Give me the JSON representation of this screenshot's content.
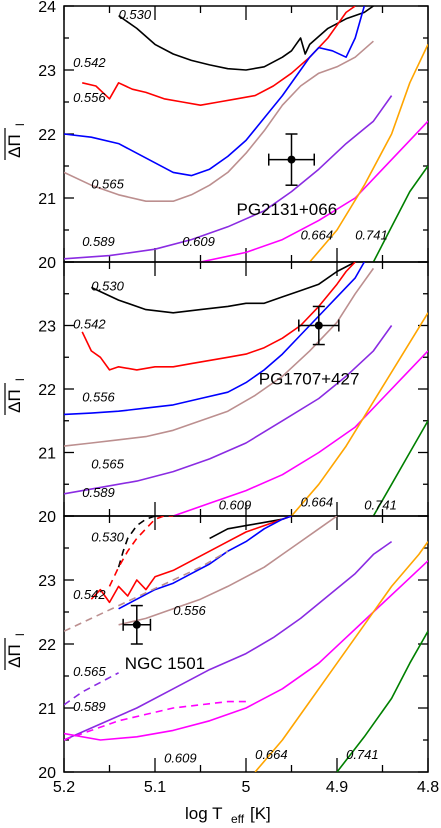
{
  "chart_data": [
    {
      "type": "line",
      "panel": "top",
      "ylabel": "ΔΠ̄_l",
      "xlim": [
        5.2,
        4.8
      ],
      "ylim": [
        20,
        24
      ],
      "y_ticks": [
        "20",
        "21",
        "22",
        "23",
        "24"
      ],
      "star": {
        "name": "PG2131+066",
        "x": 4.95,
        "y": 21.6,
        "xerr": 0.025,
        "yerr": 0.4
      },
      "series": [
        {
          "name": "0.530",
          "color": "#000000",
          "dashed": false,
          "x": [
            5.14,
            5.12,
            5.1,
            5.08,
            5.06,
            5.04,
            5.02,
            5.0,
            4.98,
            4.96,
            4.95,
            4.945,
            4.94,
            4.935,
            4.93,
            4.91,
            4.89,
            4.87,
            4.86
          ],
          "y": [
            23.85,
            23.65,
            23.4,
            23.25,
            23.15,
            23.08,
            23.02,
            23.0,
            23.05,
            23.2,
            23.3,
            23.4,
            23.5,
            23.25,
            23.4,
            23.65,
            23.8,
            23.9,
            24.0
          ]
        },
        {
          "name": "0.542",
          "color": "#ff0000",
          "dashed": false,
          "x": [
            5.18,
            5.165,
            5.15,
            5.14,
            5.125,
            5.11,
            5.09,
            5.07,
            5.05,
            5.03,
            5.01,
            4.99,
            4.97,
            4.95,
            4.93,
            4.91,
            4.9,
            4.89,
            4.88
          ],
          "y": [
            22.8,
            22.75,
            22.55,
            22.8,
            22.7,
            22.65,
            22.55,
            22.5,
            22.45,
            22.5,
            22.55,
            22.6,
            22.75,
            22.95,
            23.2,
            23.5,
            23.7,
            23.9,
            24.0
          ]
        },
        {
          "name": "0.556",
          "color": "#0000ff",
          "dashed": false,
          "x": [
            5.2,
            5.17,
            5.14,
            5.12,
            5.1,
            5.08,
            5.06,
            5.04,
            5.02,
            5.0,
            4.98,
            4.96,
            4.94,
            4.93,
            4.92,
            4.905,
            4.89,
            4.88,
            4.87
          ],
          "y": [
            22.0,
            21.95,
            21.85,
            21.7,
            21.55,
            21.4,
            21.35,
            21.45,
            21.65,
            21.9,
            22.25,
            22.6,
            23.0,
            23.2,
            23.35,
            23.3,
            23.2,
            23.5,
            24.0
          ]
        },
        {
          "name": "0.565",
          "color": "#bc8f8f",
          "dashed": false,
          "x": [
            5.2,
            5.17,
            5.14,
            5.11,
            5.08,
            5.06,
            5.04,
            5.02,
            5.0,
            4.98,
            4.96,
            4.94,
            4.92,
            4.9,
            4.88,
            4.86
          ],
          "y": [
            21.4,
            21.2,
            21.05,
            20.95,
            20.95,
            21.05,
            21.2,
            21.4,
            21.7,
            22.05,
            22.45,
            22.75,
            22.95,
            23.05,
            23.2,
            23.45
          ]
        },
        {
          "name": "0.589",
          "color": "#8a2be2",
          "dashed": false,
          "x": [
            5.2,
            5.15,
            5.1,
            5.06,
            5.02,
            4.98,
            4.95,
            4.92,
            4.89,
            4.86,
            4.84
          ],
          "y": [
            20.05,
            20.1,
            20.2,
            20.35,
            20.55,
            20.8,
            21.1,
            21.45,
            21.85,
            22.2,
            22.6
          ]
        },
        {
          "name": "0.609",
          "color": "#ff00ff",
          "dashed": false,
          "x": [
            5.05,
            5.0,
            4.96,
            4.92,
            4.88,
            4.85,
            4.82,
            4.8
          ],
          "y": [
            20.0,
            20.15,
            20.35,
            20.65,
            21.0,
            21.45,
            21.9,
            22.2
          ]
        },
        {
          "name": "0.664",
          "color": "#ffa500",
          "dashed": false,
          "x": [
            4.93,
            4.9,
            4.87,
            4.84,
            4.82,
            4.8
          ],
          "y": [
            20.0,
            20.5,
            21.2,
            22.0,
            22.8,
            23.4
          ]
        },
        {
          "name": "0.741",
          "color": "#008000",
          "dashed": false,
          "x": [
            4.86,
            4.84,
            4.82,
            4.8
          ],
          "y": [
            20.0,
            20.55,
            21.1,
            21.5
          ]
        }
      ]
    },
    {
      "type": "line",
      "panel": "middle",
      "ylabel": "ΔΠ̄_l",
      "xlim": [
        5.2,
        4.8
      ],
      "ylim": [
        20,
        24
      ],
      "y_ticks": [
        "20",
        "21",
        "22",
        "23"
      ],
      "star": {
        "name": "PG1707+427",
        "x": 4.92,
        "y": 23.0,
        "xerr": 0.022,
        "yerr": 0.3
      },
      "series": [
        {
          "name": "0.530",
          "color": "#000000",
          "dashed": false,
          "x": [
            5.17,
            5.14,
            5.11,
            5.08,
            5.05,
            5.02,
            5.0,
            4.98,
            4.96,
            4.94,
            4.92,
            4.9,
            4.88
          ],
          "y": [
            23.6,
            23.4,
            23.25,
            23.2,
            23.25,
            23.3,
            23.35,
            23.35,
            23.45,
            23.55,
            23.65,
            23.85,
            24.0
          ]
        },
        {
          "name": "0.542",
          "color": "#ff0000",
          "dashed": false,
          "x": [
            5.18,
            5.17,
            5.16,
            5.15,
            5.14,
            5.12,
            5.1,
            5.08,
            5.06,
            5.04,
            5.02,
            5.0,
            4.98,
            4.96,
            4.94,
            4.92,
            4.9,
            4.89,
            4.88
          ],
          "y": [
            22.9,
            22.6,
            22.5,
            22.3,
            22.35,
            22.3,
            22.35,
            22.35,
            22.4,
            22.45,
            22.5,
            22.55,
            22.65,
            22.8,
            23.0,
            23.3,
            23.65,
            23.85,
            24.0
          ]
        },
        {
          "name": "0.556",
          "color": "#0000ff",
          "dashed": false,
          "x": [
            5.2,
            5.17,
            5.14,
            5.11,
            5.08,
            5.05,
            5.02,
            5.0,
            4.98,
            4.96,
            4.94,
            4.92,
            4.9,
            4.88,
            4.87
          ],
          "y": [
            21.6,
            21.62,
            21.65,
            21.7,
            21.75,
            21.85,
            21.95,
            22.1,
            22.3,
            22.55,
            22.85,
            23.15,
            23.45,
            23.75,
            24.0
          ]
        },
        {
          "name": "0.565",
          "color": "#bc8f8f",
          "dashed": false,
          "x": [
            5.2,
            5.17,
            5.14,
            5.11,
            5.08,
            5.05,
            5.02,
            4.99,
            4.96,
            4.93,
            4.9,
            4.88,
            4.86
          ],
          "y": [
            21.1,
            21.15,
            21.2,
            21.25,
            21.35,
            21.5,
            21.65,
            21.9,
            22.2,
            22.6,
            23.05,
            23.5,
            23.9
          ]
        },
        {
          "name": "0.589",
          "color": "#8a2be2",
          "dashed": false,
          "x": [
            5.2,
            5.16,
            5.12,
            5.08,
            5.04,
            5.0,
            4.96,
            4.92,
            4.89,
            4.86,
            4.84
          ],
          "y": [
            20.35,
            20.45,
            20.55,
            20.7,
            20.9,
            21.15,
            21.5,
            21.85,
            22.2,
            22.6,
            23.0
          ]
        },
        {
          "name": "0.609",
          "color": "#ff00ff",
          "dashed": false,
          "x": [
            5.08,
            5.04,
            5.0,
            4.96,
            4.92,
            4.88,
            4.85,
            4.82,
            4.8
          ],
          "y": [
            20.0,
            20.2,
            20.4,
            20.65,
            21.0,
            21.4,
            21.85,
            22.3,
            22.6
          ]
        },
        {
          "name": "0.664",
          "color": "#ffa500",
          "dashed": false,
          "x": [
            4.95,
            4.92,
            4.89,
            4.86,
            4.83,
            4.8
          ],
          "y": [
            20.0,
            20.5,
            21.1,
            21.8,
            22.5,
            23.2
          ]
        },
        {
          "name": "0.741",
          "color": "#008000",
          "dashed": false,
          "x": [
            4.86,
            4.84,
            4.82,
            4.8
          ],
          "y": [
            20.0,
            20.5,
            21.0,
            21.5
          ]
        }
      ]
    },
    {
      "type": "line",
      "panel": "bottom",
      "ylabel": "ΔΠ̄_l",
      "xlabel": "log T_eff [K]",
      "xlim": [
        5.2,
        4.8
      ],
      "ylim": [
        20,
        24
      ],
      "x_ticks": [
        "5.2",
        "5.1",
        "5",
        "4.9",
        "4.8"
      ],
      "y_ticks": [
        "20",
        "21",
        "22",
        "23"
      ],
      "star": {
        "name": "NGC 1501",
        "x": 5.12,
        "y": 22.3,
        "xerr": 0.015,
        "yerr": 0.3
      },
      "series": [
        {
          "name": "0.530",
          "color": "#000000",
          "dashed": false,
          "x": [
            5.04,
            5.02,
            5.0,
            4.98,
            4.96,
            4.95
          ],
          "y": [
            23.65,
            23.8,
            23.85,
            23.9,
            23.95,
            24.0
          ]
        },
        {
          "name": "0.530",
          "color": "#000000",
          "dashed": true,
          "x": [
            5.14,
            5.135,
            5.13,
            5.12,
            5.11,
            5.1
          ],
          "y": [
            23.2,
            23.45,
            23.65,
            23.85,
            23.95,
            24.0
          ]
        },
        {
          "name": "0.542",
          "color": "#ff0000",
          "dashed": false,
          "x": [
            5.17,
            5.16,
            5.15,
            5.14,
            5.13,
            5.12,
            5.11,
            5.1,
            5.08,
            5.06,
            5.04,
            5.02,
            5.0,
            4.98,
            4.96,
            4.95
          ],
          "y": [
            22.7,
            22.85,
            22.65,
            22.9,
            22.75,
            23.0,
            22.85,
            23.05,
            23.15,
            23.3,
            23.45,
            23.6,
            23.75,
            23.85,
            23.95,
            24.0
          ]
        },
        {
          "name": "0.542",
          "color": "#ff0000",
          "dashed": true,
          "x": [
            5.15,
            5.14,
            5.13,
            5.12,
            5.11,
            5.1,
            5.09,
            5.08
          ],
          "y": [
            22.9,
            23.2,
            23.45,
            23.65,
            23.8,
            23.95,
            24.0,
            24.0
          ]
        },
        {
          "name": "0.556",
          "color": "#0000ff",
          "dashed": false,
          "x": [
            5.14,
            5.12,
            5.1,
            5.08,
            5.06,
            5.04,
            5.02,
            5.0,
            4.98,
            4.96,
            4.95
          ],
          "y": [
            22.55,
            22.7,
            22.85,
            22.95,
            23.1,
            23.25,
            23.45,
            23.6,
            23.8,
            23.95,
            24.0
          ]
        },
        {
          "name": "0.556",
          "color": "#bc8f8f",
          "dashed": true,
          "x": [
            5.2,
            5.17,
            5.14,
            5.11,
            5.08,
            5.05,
            5.02
          ],
          "y": [
            22.2,
            22.4,
            22.6,
            22.8,
            23.0,
            23.2,
            23.45
          ]
        },
        {
          "name": "0.565",
          "color": "#bc8f8f",
          "dashed": false,
          "x": [
            5.14,
            5.11,
            5.08,
            5.05,
            5.02,
            5.0,
            4.98,
            4.96,
            4.94,
            4.92,
            4.9
          ],
          "y": [
            22.3,
            22.4,
            22.55,
            22.7,
            22.9,
            23.05,
            23.2,
            23.4,
            23.6,
            23.8,
            24.0
          ]
        },
        {
          "name": "0.589",
          "color": "#8a2be2",
          "dashed": false,
          "x": [
            5.2,
            5.16,
            5.12,
            5.08,
            5.04,
            5.0,
            4.97,
            4.94,
            4.91,
            4.88,
            4.86,
            4.84
          ],
          "y": [
            20.5,
            20.75,
            21.0,
            21.3,
            21.6,
            21.85,
            22.1,
            22.4,
            22.75,
            23.1,
            23.4,
            23.6
          ]
        },
        {
          "name": "0.589",
          "color": "#8a2be2",
          "dashed": true,
          "x": [
            5.2,
            5.18,
            5.16,
            5.14
          ],
          "y": [
            21.05,
            21.25,
            21.4,
            21.55
          ]
        },
        {
          "name": "0.609",
          "color": "#ff00ff",
          "dashed": false,
          "x": [
            5.2,
            5.16,
            5.12,
            5.08,
            5.04,
            5.0,
            4.96,
            4.92,
            4.89,
            4.86,
            4.83,
            4.8
          ],
          "y": [
            20.6,
            20.5,
            20.55,
            20.65,
            20.8,
            21.0,
            21.3,
            21.7,
            22.1,
            22.5,
            22.9,
            23.3
          ]
        },
        {
          "name": "0.609",
          "color": "#ff00ff",
          "dashed": true,
          "x": [
            5.2,
            5.17,
            5.14,
            5.11,
            5.08,
            5.05,
            5.02,
            5.0
          ],
          "y": [
            20.5,
            20.65,
            20.8,
            20.9,
            21.0,
            21.05,
            21.1,
            21.1
          ]
        },
        {
          "name": "0.664",
          "color": "#ffa500",
          "dashed": false,
          "x": [
            4.99,
            4.96,
            4.93,
            4.9,
            4.87,
            4.84,
            4.81,
            4.8
          ],
          "y": [
            20.0,
            20.5,
            21.1,
            21.7,
            22.3,
            22.9,
            23.4,
            23.6
          ]
        },
        {
          "name": "0.741",
          "color": "#008000",
          "dashed": false,
          "x": [
            4.9,
            4.87,
            4.84,
            4.82,
            4.8
          ],
          "y": [
            20.0,
            20.55,
            21.15,
            21.7,
            22.2
          ]
        }
      ]
    }
  ],
  "labels": {
    "top": [
      {
        "text": "0.530",
        "x": 5.14,
        "y": 23.8
      },
      {
        "text": "0.542",
        "x": 5.19,
        "y": 23.05
      },
      {
        "text": "0.556",
        "x": 5.19,
        "y": 22.5
      },
      {
        "text": "0.565",
        "x": 5.17,
        "y": 21.15
      },
      {
        "text": "0.589",
        "x": 5.18,
        "y": 20.25
      },
      {
        "text": "0.609",
        "x": 5.07,
        "y": 20.25
      },
      {
        "text": "0.664",
        "x": 4.94,
        "y": 20.35
      },
      {
        "text": "0.741",
        "x": 4.88,
        "y": 20.35
      }
    ],
    "middle": [
      {
        "text": "0.530",
        "x": 5.17,
        "y": 23.55
      },
      {
        "text": "0.542",
        "x": 5.19,
        "y": 22.95
      },
      {
        "text": "0.556",
        "x": 5.18,
        "y": 21.8
      },
      {
        "text": "0.565",
        "x": 5.17,
        "y": 20.75
      },
      {
        "text": "0.589",
        "x": 5.18,
        "y": 20.3
      },
      {
        "text": "0.609",
        "x": 5.03,
        "y": 20.1
      },
      {
        "text": "0.664",
        "x": 4.94,
        "y": 20.15
      },
      {
        "text": "0.741",
        "x": 4.87,
        "y": 20.1
      }
    ],
    "bottom": [
      {
        "text": "0.530",
        "x": 5.17,
        "y": 23.6
      },
      {
        "text": "0.542",
        "x": 5.19,
        "y": 22.7
      },
      {
        "text": "0.556",
        "x": 5.08,
        "y": 22.45
      },
      {
        "text": "0.565",
        "x": 5.19,
        "y": 21.5
      },
      {
        "text": "0.589",
        "x": 5.19,
        "y": 20.95
      },
      {
        "text": "0.609",
        "x": 5.09,
        "y": 20.15
      },
      {
        "text": "0.664",
        "x": 4.99,
        "y": 20.2
      },
      {
        "text": "0.741",
        "x": 4.89,
        "y": 20.2
      }
    ]
  },
  "axis": {
    "ylabel_main": "ΔΠ",
    "ylabel_sub": "l",
    "xlabel_main": "log T",
    "xlabel_sub": "eff",
    "xlabel_unit": " [K]"
  }
}
